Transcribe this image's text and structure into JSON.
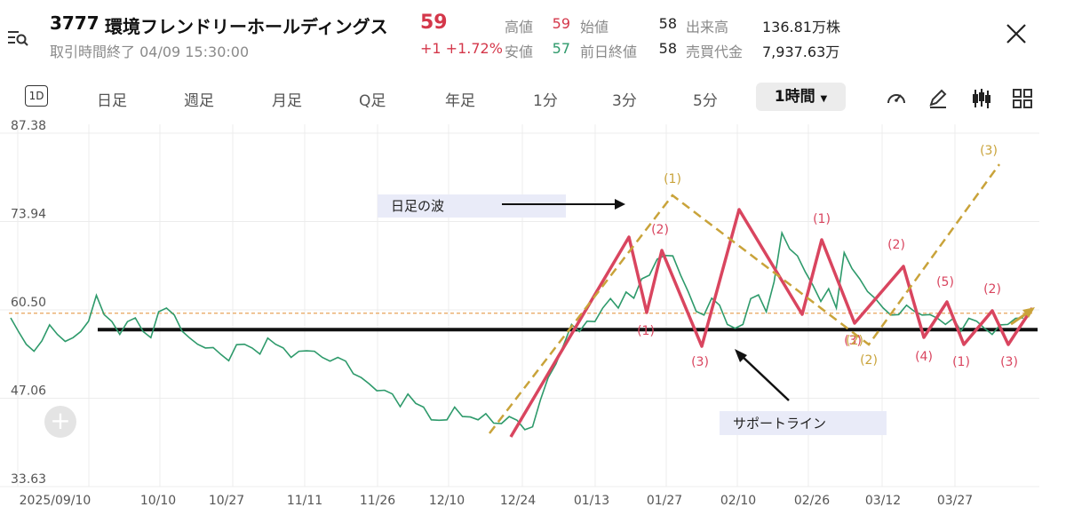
{
  "header": {
    "code": "3777",
    "name": "環境フレンドリーホールディングス",
    "price": "59",
    "change": "+1 +1.72%",
    "status": "取引時間終了 04/09 15:30:00"
  },
  "stats": [
    {
      "label": "高値",
      "value": "59",
      "color": "#d4374a"
    },
    {
      "label": "始値",
      "value": "58",
      "color": "#222222"
    },
    {
      "label": "出来高",
      "value": "136.81万株",
      "color": "#222222"
    },
    {
      "label": "安値",
      "value": "57",
      "color": "#2e9a6b"
    },
    {
      "label": "前日終値",
      "value": "58",
      "color": "#222222"
    },
    {
      "label": "売買代金",
      "value": "7,937.63万",
      "color": "#222222"
    }
  ],
  "tabs": {
    "d1_icon": "1D",
    "items": [
      "日足",
      "週足",
      "月足",
      "Q足",
      "年足",
      "1分",
      "3分",
      "5分"
    ],
    "active": "1時間"
  },
  "icons": [
    "menu-search-icon",
    "close-icon",
    "speedometer-icon",
    "pen-icon",
    "candlestick-icon",
    "grid-icon",
    "plus-icon"
  ],
  "colors": {
    "price_line": "#2e9a6b",
    "wave_red": "#d9455f",
    "wave_gold": "#c9a33a",
    "support": "#111111",
    "ref_line": "#e8a45a",
    "label_bg": "#e9ebf8"
  },
  "chart_data": {
    "type": "line",
    "y_ticks": [
      "87.38",
      "73.94",
      "60.50",
      "47.06",
      "33.63"
    ],
    "ylim": [
      33.63,
      87.38
    ],
    "x_ticks": [
      "2025/09/10",
      "10/10",
      "10/27",
      "11/11",
      "11/26",
      "12/10",
      "12/24",
      "01/13",
      "01/27",
      "02/10",
      "02/26",
      "03/12",
      "03/27"
    ],
    "grid": true,
    "series": [
      {
        "values": [
          59.5,
          57,
          55.5,
          54,
          56,
          58,
          57,
          55.5,
          56.5,
          57,
          59,
          62.5,
          60,
          58.5,
          57,
          58.5,
          59.5,
          57,
          56.5,
          60,
          61,
          59.5,
          57.5,
          56,
          55.5,
          54.5,
          55,
          53.5,
          53,
          55,
          55.5,
          54.5,
          54,
          56,
          55.5,
          54.5,
          53.5,
          54,
          54.5,
          54,
          53.5,
          52.5,
          53.5,
          52.5,
          51,
          50,
          49.5,
          48,
          48.5,
          47.5,
          46,
          47.5,
          46.5,
          45.5,
          44,
          43.5,
          44,
          45.5,
          44.5,
          44,
          44,
          44.5,
          43.5,
          43,
          44.5,
          43.5,
          42.5,
          42.5,
          47,
          50,
          52.5,
          55,
          58.5,
          57,
          59,
          58.5,
          61,
          62,
          61,
          63,
          62.5,
          65,
          66,
          68,
          69,
          68.5,
          66,
          63,
          60.5,
          59.5,
          62.5,
          61,
          58.5,
          57.5,
          58.5,
          62,
          63,
          60,
          65,
          72,
          70,
          68.5,
          66.5,
          64,
          62,
          63.5,
          61,
          69,
          67,
          65,
          63.5,
          62,
          61,
          59.5,
          60,
          61,
          60.5,
          59.5,
          60,
          59,
          58.5,
          59,
          57.5,
          59,
          59,
          57.5,
          57,
          58,
          58.5,
          59,
          59.5
        ]
      }
    ],
    "series_x_range": [
      "2025/09/10",
      "04/09"
    ],
    "support_line": 57.5,
    "reference_line": 60.0,
    "wave_labels": {
      "red": [
        "(2)",
        "(1)",
        "(3)",
        "(1)",
        "(3)",
        "(2)",
        "(5)",
        "(4)",
        "(1)",
        "(2)",
        "(3)"
      ],
      "gold": [
        "(1)",
        "(2)",
        "(2)",
        "(3)"
      ]
    },
    "annotations": [
      "日足の波",
      "サポートライン"
    ]
  }
}
